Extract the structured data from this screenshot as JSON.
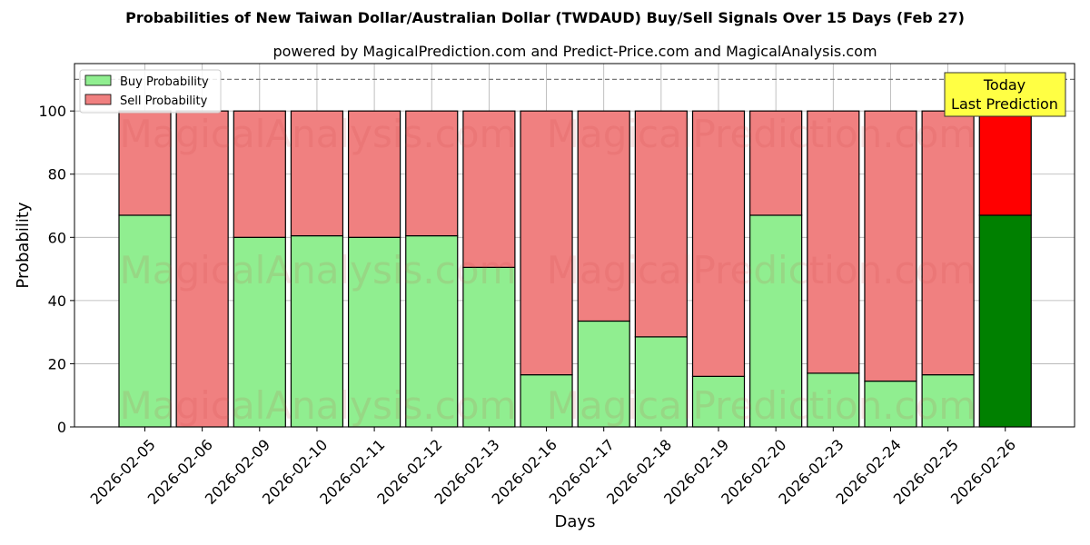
{
  "chart_data": {
    "type": "bar",
    "title": "Probabilities of New Taiwan Dollar/Australian Dollar (TWDAUD) Buy/Sell Signals Over 15 Days (Feb 27)",
    "subtitle": "powered by MagicalPrediction.com and Predict-Price.com and MagicalAnalysis.com",
    "xlabel": "Days",
    "ylabel": "Probability",
    "ylim": [
      0,
      115
    ],
    "yticks": [
      0,
      20,
      40,
      60,
      80,
      100
    ],
    "grid": true,
    "stacked": true,
    "legend_position": "top-left",
    "reference_line": 110,
    "categories": [
      "2026-02-05",
      "2026-02-06",
      "2026-02-09",
      "2026-02-10",
      "2026-02-11",
      "2026-02-12",
      "2026-02-13",
      "2026-02-16",
      "2026-02-17",
      "2026-02-18",
      "2026-02-19",
      "2026-02-20",
      "2026-02-23",
      "2026-02-24",
      "2026-02-25",
      "2026-02-26"
    ],
    "series": [
      {
        "name": "Buy Probability",
        "color": "#90EE90",
        "highlight_color": "#008000",
        "values": [
          67,
          0,
          60,
          60.5,
          60,
          60.5,
          50.5,
          16.5,
          33.5,
          28.5,
          16,
          67,
          17,
          14.5,
          16.5,
          67
        ]
      },
      {
        "name": "Sell Probability",
        "color": "#F08080",
        "highlight_color": "#FF0000",
        "values": [
          33,
          100,
          40,
          39.5,
          40,
          39.5,
          49.5,
          83.5,
          66.5,
          71.5,
          84,
          33,
          83,
          85.5,
          83.5,
          33
        ]
      }
    ],
    "highlight_index": 15,
    "annotation": {
      "line1": "Today",
      "line2": "Last Prediction",
      "color": "#FFFF44"
    },
    "watermarks": [
      "MagicalAnalysis.com",
      "MagicalPrediction.com"
    ]
  }
}
